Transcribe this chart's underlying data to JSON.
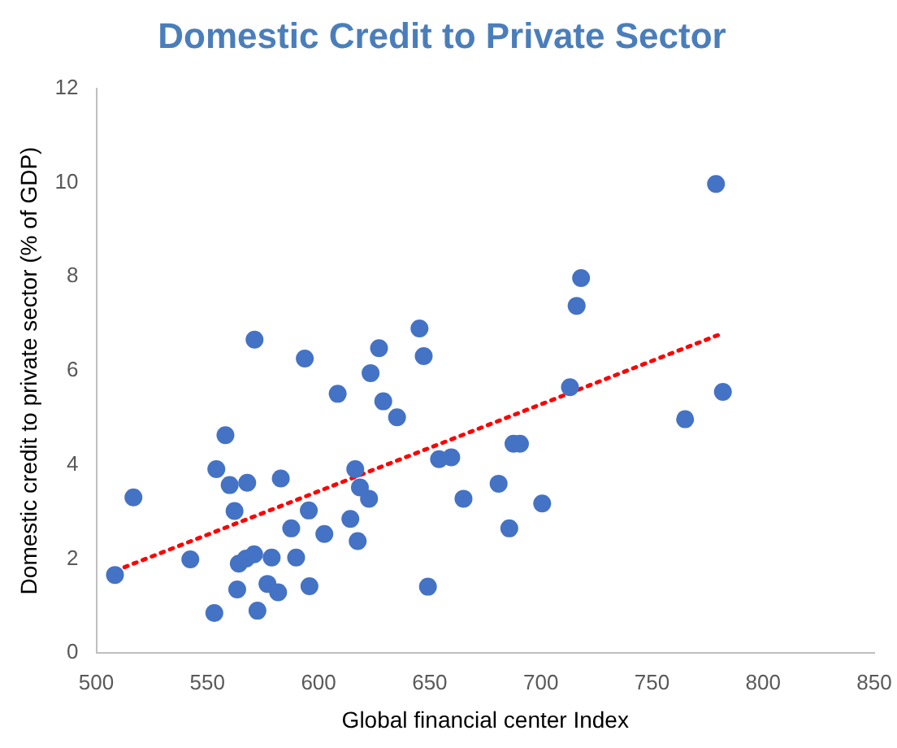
{
  "chart_data": {
    "type": "scatter",
    "title": "Domestic Credit to Private Sector",
    "xlabel": "Global financial center Index",
    "ylabel": "Domestic credit to private sector (% of GDP)",
    "xlim": [
      500,
      850
    ],
    "xticks": [
      500,
      550,
      600,
      650,
      700,
      750,
      800,
      850
    ],
    "ylim": [
      0,
      12
    ],
    "yticks": [
      0,
      2,
      4,
      6,
      8,
      10,
      12
    ],
    "grid": false,
    "legend": false,
    "marker": "circle",
    "series": [
      {
        "color": "#4472c4",
        "x": [
          508.4,
          516.7,
          542.3,
          553.1,
          554,
          558.1,
          560,
          562.2,
          563.4,
          564.1,
          567.4,
          567.9,
          571,
          571.2,
          572.5,
          577,
          578.9,
          581.8,
          583,
          587.7,
          589.9,
          593.8,
          595.6,
          595.9,
          602.6,
          608.6,
          614.3,
          616.5,
          617.6,
          618.6,
          622.7,
          623.4,
          627.2,
          629.1,
          635.3,
          645.4,
          647.3,
          649.2,
          654.2,
          659.7,
          665.2,
          681,
          685.8,
          687.7,
          690.6,
          700.6,
          713.1,
          716.1,
          718.1,
          764.9,
          778.8,
          781.9
        ],
        "values": [
          1.66,
          3.31,
          1.99,
          0.85,
          3.91,
          4.63,
          3.57,
          3.02,
          1.35,
          1.9,
          2.01,
          3.62,
          2.1,
          6.66,
          0.9,
          1.47,
          2.03,
          1.29,
          3.71,
          2.65,
          2.03,
          6.26,
          3.03,
          1.42,
          2.53,
          5.51,
          2.85,
          3.91,
          2.38,
          3.52,
          3.28,
          5.95,
          6.48,
          5.35,
          5.01,
          6.9,
          6.31,
          1.41,
          4.12,
          4.16,
          3.28,
          3.6,
          2.65,
          4.45,
          4.45,
          3.18,
          5.65,
          7.38,
          7.97,
          4.97,
          9.97,
          5.55
        ]
      },
      {
        "type": "line",
        "color": "#ff0000",
        "line_style": "dotted",
        "marker": "none",
        "x": [
          508.6,
          780.9
        ],
        "values": [
          1.75,
          6.78
        ]
      }
    ]
  }
}
